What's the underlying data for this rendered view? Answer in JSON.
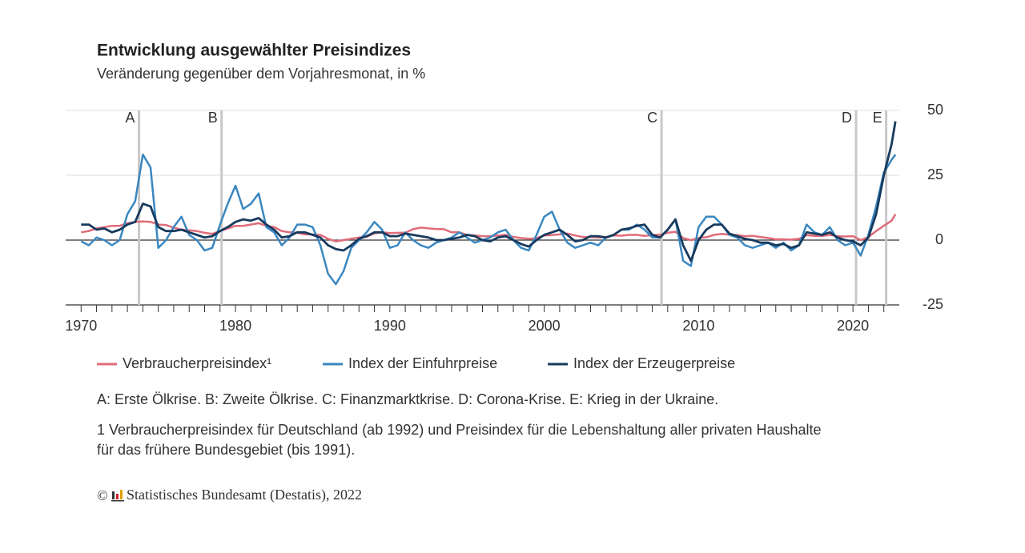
{
  "chart_data": {
    "type": "line",
    "title": "Entwicklung ausgewählter Preisindizes",
    "subtitle": "Veränderung gegenüber dem Vorjahresmonat, in %",
    "x": [
      1970,
      1970.5,
      1971,
      1971.5,
      1972,
      1972.5,
      1973,
      1973.5,
      1974,
      1974.5,
      1975,
      1975.5,
      1976,
      1976.5,
      1977,
      1977.5,
      1978,
      1978.5,
      1979,
      1979.5,
      1980,
      1980.5,
      1981,
      1981.5,
      1982,
      1982.5,
      1983,
      1983.5,
      1984,
      1984.5,
      1985,
      1985.5,
      1986,
      1986.5,
      1987,
      1987.5,
      1988,
      1988.5,
      1989,
      1989.5,
      1990,
      1990.5,
      1991,
      1991.5,
      1992,
      1992.5,
      1993,
      1993.5,
      1994,
      1994.5,
      1995,
      1995.5,
      1996,
      1996.5,
      1997,
      1997.5,
      1998,
      1998.5,
      1999,
      1999.5,
      2000,
      2000.5,
      2001,
      2001.5,
      2002,
      2002.5,
      2003,
      2003.5,
      2004,
      2004.5,
      2005,
      2005.5,
      2006,
      2006.5,
      2007,
      2007.5,
      2008,
      2008.5,
      2009,
      2009.5,
      2010,
      2010.5,
      2011,
      2011.5,
      2012,
      2012.5,
      2013,
      2013.5,
      2014,
      2014.5,
      2015,
      2015.5,
      2016,
      2016.5,
      2017,
      2017.5,
      2018,
      2018.5,
      2019,
      2019.5,
      2020,
      2020.5,
      2021,
      2021.5,
      2022,
      2022.5,
      2022.75
    ],
    "series": [
      {
        "name": "Verbraucherpreisindex¹",
        "color": "#e06c7a",
        "values": [
          3,
          3.5,
          4.5,
          5,
          5.5,
          5.5,
          6.5,
          7,
          7.2,
          7,
          6,
          5.8,
          4.8,
          4,
          3.8,
          3.5,
          2.8,
          2.4,
          3.5,
          4.5,
          5.5,
          5.5,
          6,
          6.5,
          5.5,
          5,
          3.5,
          3,
          2.8,
          2.2,
          2.2,
          2,
          0.5,
          -0.5,
          0,
          0.5,
          1,
          1.3,
          2.6,
          3,
          2.7,
          2.8,
          2.8,
          4.2,
          4.8,
          4.5,
          4.3,
          4.2,
          3,
          3,
          2,
          1.8,
          1.5,
          1.5,
          1.8,
          2,
          1.2,
          0.8,
          0.5,
          0.7,
          1.8,
          1.9,
          2.2,
          2.5,
          1.8,
          1.2,
          1.2,
          1,
          1.2,
          1.8,
          1.7,
          2,
          2,
          1.6,
          1.9,
          2.1,
          2.8,
          3.2,
          0.8,
          0,
          0.8,
          1.1,
          2,
          2.4,
          2.1,
          1.9,
          1.5,
          1.6,
          1.2,
          0.8,
          0.3,
          0.3,
          0.2,
          0.5,
          1.9,
          1.6,
          1.6,
          2,
          1.5,
          1.4,
          1.5,
          0,
          1.2,
          3.5,
          5.5,
          7.5,
          10
        ]
      },
      {
        "name": "Index der Einfuhrpreise",
        "color": "#3a87c0",
        "values": [
          -0.5,
          -2,
          1,
          0,
          -2,
          0,
          10,
          15,
          33,
          28,
          -3,
          0,
          5,
          9,
          2,
          0,
          -4,
          -3,
          6,
          14,
          21,
          12,
          14,
          18,
          5,
          3,
          -2,
          1,
          6,
          6,
          5,
          -2,
          -13,
          -17,
          -12,
          -3,
          0,
          3,
          7,
          4,
          -3,
          -2,
          3,
          0,
          -2,
          -3,
          -1,
          0,
          1,
          3,
          1,
          -1,
          0,
          1,
          3,
          4,
          0,
          -3,
          -4,
          2,
          9,
          11,
          4,
          -1,
          -3,
          -2,
          -1,
          -2,
          1,
          2,
          4,
          4,
          6,
          4,
          1,
          1,
          4,
          8,
          -8,
          -10,
          5,
          9,
          9,
          6,
          2,
          1,
          -2,
          -3,
          -2,
          -1,
          -3,
          -1,
          -4,
          -2,
          6,
          3,
          2,
          5,
          0,
          -2,
          -1,
          -6,
          2,
          13,
          26,
          31,
          33
        ]
      },
      {
        "name": "Index der Erzeugerpreise",
        "color": "#173a5e",
        "values": [
          6,
          6,
          4,
          4.5,
          3,
          4,
          6,
          7,
          14,
          13,
          5,
          3.5,
          3.5,
          4,
          3,
          2,
          1,
          1.5,
          3.5,
          5,
          7,
          8,
          7.5,
          8.5,
          6,
          4,
          1,
          1.5,
          3,
          3,
          2,
          1,
          -2,
          -3.5,
          -4,
          -2,
          0.5,
          1.5,
          3,
          3,
          1.5,
          1.5,
          2.5,
          2,
          1.5,
          1,
          0,
          0,
          0.5,
          1,
          2,
          1.5,
          0,
          -0.5,
          1,
          1.5,
          0,
          -1.5,
          -2.5,
          0,
          2,
          3,
          4,
          2,
          -0.5,
          0,
          1.5,
          1.5,
          1,
          2,
          4,
          4.5,
          5.5,
          6,
          2,
          1,
          4,
          8,
          -2,
          -8,
          0,
          4,
          6,
          6,
          2.5,
          1.5,
          0.5,
          0,
          -1,
          -1,
          -2,
          -1.5,
          -3,
          -2,
          3,
          2.5,
          2,
          3,
          1,
          0,
          -0.5,
          -2,
          1,
          10,
          25,
          37,
          45.8
        ]
      }
    ],
    "xlim": [
      1969,
      2023
    ],
    "xticks": [
      1970,
      1980,
      1990,
      2000,
      2010,
      2020
    ],
    "xminorticks": [
      1971,
      1972,
      1973,
      1974,
      1975,
      1976,
      1977,
      1978,
      1979,
      1981,
      1982,
      1983,
      1984,
      1985,
      1986,
      1987,
      1988,
      1989,
      1991,
      1992,
      1993,
      1994,
      1995,
      1996,
      1997,
      1998,
      1999,
      2001,
      2002,
      2003,
      2004,
      2005,
      2006,
      2007,
      2008,
      2009,
      2011,
      2012,
      2013,
      2014,
      2015,
      2016,
      2017,
      2018,
      2019,
      2021,
      2022
    ],
    "ylim": [
      -25,
      50
    ],
    "yticks": [
      -25,
      0,
      25,
      50
    ],
    "grid": true,
    "events": [
      {
        "label": "A",
        "x": 1973.75
      },
      {
        "label": "B",
        "x": 1979.1
      },
      {
        "label": "C",
        "x": 2007.6
      },
      {
        "label": "D",
        "x": 2020.2
      },
      {
        "label": "E",
        "x": 2022.15
      }
    ],
    "event_note": "A: Erste Ölkrise. B: Zweite Ölkrise. C: Finanzmarktkrise. D: Corona-Krise. E: Krieg in der Ukraine.",
    "footnote": [
      "1 Verbraucherpreisindex für Deutschland (ab 1992) und Preisindex für die Lebenshaltung aller privaten Haushalte",
      "für das frühere Bundesgebiet (bis 1991)."
    ],
    "source": "Statistisches Bundesamt (Destatis), 2022"
  }
}
